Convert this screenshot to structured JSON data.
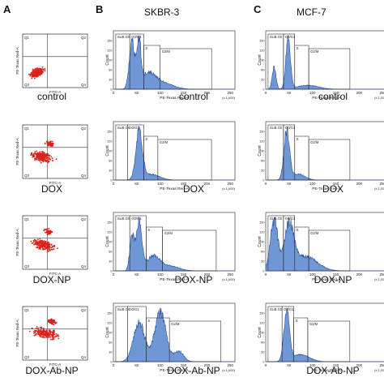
{
  "panels": {
    "a": "A",
    "b": "B",
    "c": "C"
  },
  "columns": {
    "b": "SKBR-3",
    "c": "MCF-7"
  },
  "conditions": [
    "control",
    "DOX",
    "DOX-NP",
    "DOX-Ab-NP"
  ],
  "dot": {
    "quadrants": [
      "Q1",
      "Q2",
      "Q3",
      "Q4"
    ],
    "xlabel": "FITC-A",
    "ylabel": "PE-Texas Red-A",
    "color": "#d9231c"
  },
  "hist": {
    "gates": [
      "SUB G0",
      "G0/G1",
      "S",
      "G2/M"
    ],
    "xlabel": "PE-Texas Red-A",
    "ylabel": "Count",
    "xticks": [
      "0",
      "50",
      "100",
      "150",
      "200",
      "250"
    ],
    "xunit": "(x 1,000)",
    "fill": "#6f97d6",
    "stroke": "#2c4f9e"
  }
}
